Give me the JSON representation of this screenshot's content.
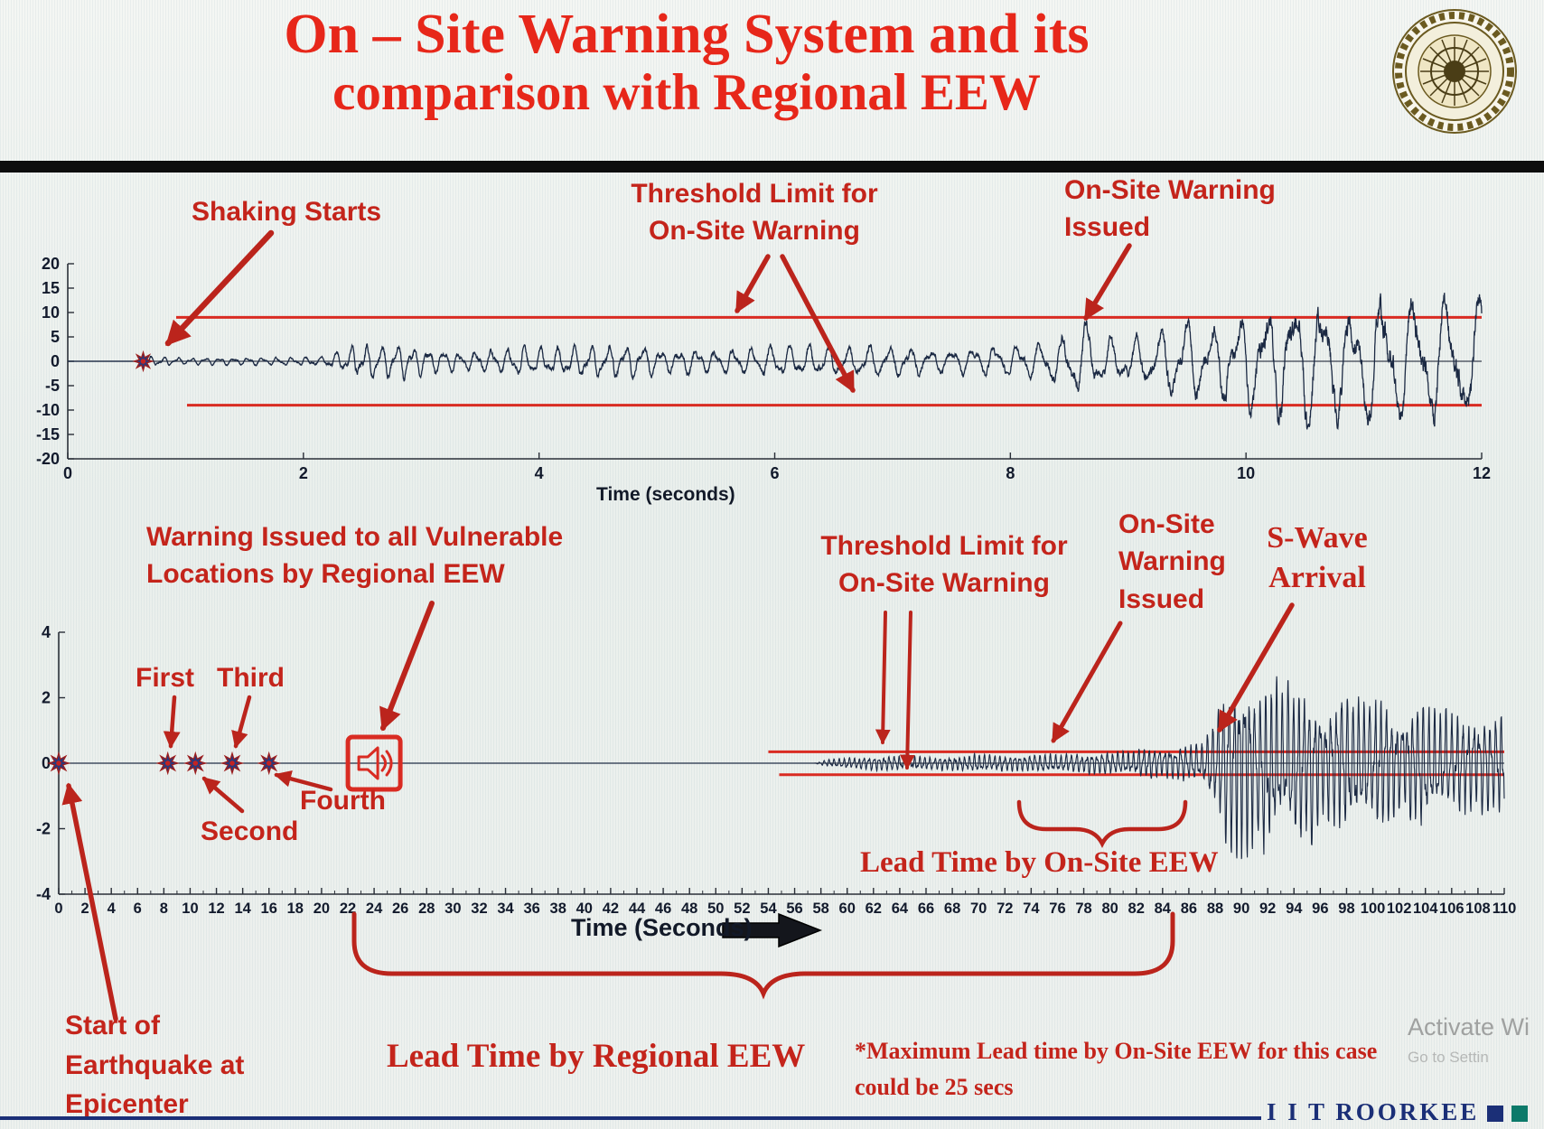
{
  "title": {
    "line1": "On – Site Warning System and its",
    "line2": "comparison with Regional EEW"
  },
  "colors": {
    "title_red": "#e7271a",
    "accent_red": "#c4241b",
    "arrow_red": "#bb241c",
    "threshold_red": "#d92b22",
    "waveform": "#1b2943",
    "axis": "#2a2f38",
    "brand_blue": "#1b2f77",
    "brand_teal": "#0c7a6a"
  },
  "top_annotations": {
    "shaking_starts": "Shaking Starts",
    "threshold_line1": "Threshold Limit for",
    "threshold_line2": "On-Site Warning",
    "issued_line1": "On-Site Warning",
    "issued_line2": "Issued"
  },
  "bottom_annotations": {
    "regional_line1": "Warning Issued to all Vulnerable",
    "regional_line2": "Locations by Regional EEW",
    "threshold_line1": "Threshold Limit for",
    "threshold_line2": "On-Site Warning",
    "issued_line1": "On-Site",
    "issued_line2": "Warning",
    "issued_line3": "Issued",
    "swave_line1": "S-Wave",
    "swave_line2": "Arrival",
    "first": "First",
    "second": "Second",
    "third": "Third",
    "fourth": "Fourth",
    "lead_time_onsite": "Lead Time by On-Site EEW",
    "lead_time_regional": "Lead Time by Regional EEW",
    "note_line1": "*Maximum Lead time by On-Site EEW for this case",
    "note_line2": "could be 25 secs",
    "start_line1": "Start of",
    "start_line2": "Earthquake at",
    "start_line3": "Epicenter"
  },
  "footer": {
    "brand": "I I T ROORKEE",
    "watermark_line1": "Activate Wi",
    "watermark_line2": "Go to Settin"
  },
  "icons": {
    "logo": "iit-roorkee-seal-icon",
    "warning_speaker": "regional-warning-speaker-icon",
    "time_axis_arrow": "time-axis-right-arrow-icon",
    "event_marker": "earthquake-star-marker"
  },
  "chart_data": [
    {
      "type": "line",
      "name": "onsite-accelerogram",
      "title": "",
      "xlabel": "Time (seconds)",
      "ylabel": "",
      "xlim": [
        0,
        12
      ],
      "ylim": [
        -20,
        20
      ],
      "xticks": [
        0,
        2,
        4,
        6,
        8,
        10,
        12
      ],
      "yticks": [
        20,
        15,
        10,
        5,
        0,
        -5,
        -10,
        -15,
        -20
      ],
      "grid": false,
      "legend": "none",
      "threshold": {
        "upper": 9,
        "lower": -9,
        "start_time": 0.92
      },
      "events": {
        "shaking_start_time": 0.64,
        "warning_issued_time": 9.4
      },
      "envelope": [
        [
          0,
          0
        ],
        [
          0.6,
          0
        ],
        [
          0.65,
          1.2
        ],
        [
          1.0,
          0.8
        ],
        [
          1.7,
          0.9
        ],
        [
          2.15,
          1.1
        ],
        [
          2.45,
          3.8
        ],
        [
          2.75,
          4.4
        ],
        [
          3.05,
          3.0
        ],
        [
          3.4,
          2.3
        ],
        [
          3.8,
          3.1
        ],
        [
          4.25,
          3.7
        ],
        [
          4.6,
          4.3
        ],
        [
          5.0,
          3.3
        ],
        [
          5.45,
          2.7
        ],
        [
          5.85,
          3.5
        ],
        [
          6.25,
          4.1
        ],
        [
          6.6,
          3.3
        ],
        [
          7.0,
          3.7
        ],
        [
          7.4,
          2.9
        ],
        [
          7.8,
          3.3
        ],
        [
          8.2,
          4.2
        ],
        [
          8.45,
          6.6
        ],
        [
          8.6,
          9.3
        ],
        [
          8.8,
          6.2
        ],
        [
          9.0,
          5.6
        ],
        [
          9.25,
          7.0
        ],
        [
          9.45,
          10.0
        ],
        [
          9.7,
          8.4
        ],
        [
          10.0,
          11.5
        ],
        [
          10.3,
          14.5
        ],
        [
          10.6,
          16.5
        ],
        [
          10.9,
          12.5
        ],
        [
          11.2,
          17.5
        ],
        [
          11.5,
          13.5
        ],
        [
          11.8,
          16.0
        ],
        [
          12,
          14.0
        ]
      ],
      "render": {
        "seed": 7,
        "samples": 5200,
        "freq_start": 9.0,
        "freq_end": 3.4
      }
    },
    {
      "type": "line",
      "name": "regional-seismogram",
      "title": "",
      "xlabel": "Time (Seconds)",
      "ylabel": "",
      "xlim": [
        0,
        110
      ],
      "ylim": [
        -4,
        4
      ],
      "xticks": [
        0,
        2,
        4,
        6,
        8,
        10,
        12,
        14,
        16,
        18,
        20,
        22,
        24,
        26,
        28,
        30,
        32,
        34,
        36,
        38,
        40,
        42,
        44,
        46,
        48,
        50,
        52,
        54,
        56,
        58,
        60,
        62,
        64,
        66,
        68,
        70,
        72,
        74,
        76,
        78,
        80,
        82,
        84,
        86,
        88,
        90,
        92,
        94,
        96,
        98,
        100,
        102,
        104,
        106,
        108,
        110
      ],
      "yticks": [
        4,
        2,
        0,
        -2,
        -4
      ],
      "grid": false,
      "legend": "none",
      "threshold": {
        "upper": 0.35,
        "lower": -0.35,
        "start_time": 54
      },
      "p_wave_markers": [
        0,
        8.3,
        10.4,
        13.2,
        16.0
      ],
      "regional_warning_time": 24,
      "s_wave_arrival_time": 88,
      "max_onsite_lead_time_secs": 25,
      "envelope": [
        [
          0,
          0
        ],
        [
          57.5,
          0
        ],
        [
          58.5,
          0.12
        ],
        [
          61,
          0.2
        ],
        [
          64,
          0.26
        ],
        [
          67,
          0.22
        ],
        [
          70,
          0.3
        ],
        [
          73,
          0.27
        ],
        [
          76,
          0.31
        ],
        [
          79,
          0.36
        ],
        [
          81,
          0.44
        ],
        [
          83,
          0.5
        ],
        [
          85,
          0.55
        ],
        [
          87,
          0.7
        ],
        [
          88,
          1.5
        ],
        [
          89,
          2.9
        ],
        [
          90,
          3.2
        ],
        [
          91,
          2.6
        ],
        [
          92,
          3.0
        ],
        [
          93,
          2.3
        ],
        [
          94.5,
          2.7
        ],
        [
          96,
          2.0
        ],
        [
          97.5,
          2.5
        ],
        [
          99,
          1.9
        ],
        [
          100.5,
          2.3
        ],
        [
          102,
          1.7
        ],
        [
          103.5,
          2.1
        ],
        [
          105,
          1.6
        ],
        [
          106.5,
          1.9
        ],
        [
          108,
          1.5
        ],
        [
          110,
          1.8
        ]
      ],
      "render": {
        "seed": 11,
        "samples": 6200,
        "freq_start": 3.0,
        "freq_end": 2.35
      }
    }
  ]
}
